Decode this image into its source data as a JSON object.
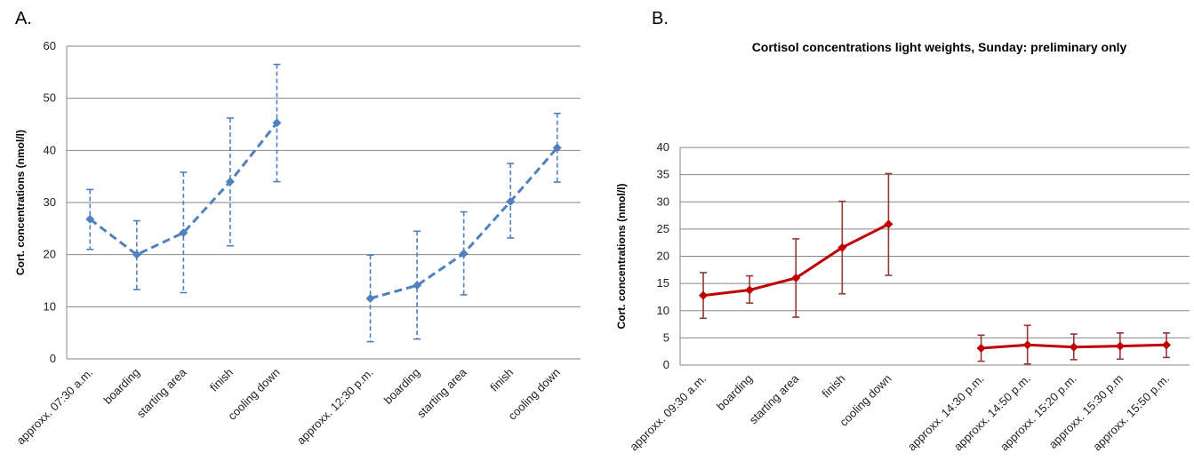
{
  "panels": {
    "a": "A.",
    "b": "B."
  },
  "chart_data": [
    {
      "type": "line",
      "title": "",
      "ylabel": "Cort. concentrations  (nmol/l)",
      "ylim": [
        0,
        60
      ],
      "yticks": [
        0,
        10,
        20,
        30,
        40,
        50,
        60
      ],
      "grid": true,
      "color": "#4f81bd",
      "line_style": "dashed",
      "categories": [
        "approxx. 07:30 a.m.",
        "boarding",
        "starting area",
        "finish",
        "cooling down",
        "",
        "approxx. 12:30 p.m.",
        "boarding",
        "starting area",
        "finish",
        "cooling down"
      ],
      "series": [
        {
          "segments": [
            {
              "start": 0,
              "values": [
                26.8,
                20,
                24.2,
                34,
                45.3
              ],
              "err_low": [
                21,
                13.3,
                12.7,
                21.7,
                34
              ],
              "err_high": [
                32.5,
                26.5,
                35.8,
                46.2,
                56.5
              ]
            },
            {
              "start": 6,
              "values": [
                11.6,
                14.1,
                20.2,
                30.2,
                40.5
              ],
              "err_low": [
                3.3,
                3.8,
                12.3,
                23.2,
                33.9
              ],
              "err_high": [
                19.9,
                24.5,
                28.2,
                37.5,
                47.1
              ]
            }
          ]
        }
      ]
    },
    {
      "type": "line",
      "title": "Cortisol concentrations light weights, Sunday: preliminary only",
      "ylabel": "Cort. concentrations  (nmol/l)",
      "ylim": [
        0,
        40
      ],
      "yticks": [
        0,
        5,
        10,
        15,
        20,
        25,
        30,
        35,
        40
      ],
      "grid": true,
      "color": "#c00000",
      "errcolor": "#953735",
      "line_style": "solid",
      "categories": [
        "approxx. 09:30 a.m.",
        "boarding",
        "starting area",
        "finish",
        "cooling down",
        "",
        "approxx. 14:30 p.m.",
        "approxx. 14:50 p.m.",
        "approxx. 15:20 p.m.",
        "approxx. 15:30 p.m",
        "approxx. 15:50 p.m."
      ],
      "series": [
        {
          "segments": [
            {
              "start": 0,
              "values": [
                12.8,
                13.8,
                16,
                21.6,
                25.9
              ],
              "err_low": [
                8.6,
                11.4,
                8.8,
                13.1,
                16.5
              ],
              "err_high": [
                17,
                16.4,
                23.2,
                30.1,
                35.2
              ]
            },
            {
              "start": 6,
              "values": [
                3.1,
                3.7,
                3.3,
                3.5,
                3.7
              ],
              "err_low": [
                0.7,
                0.2,
                1,
                1.1,
                1.4
              ],
              "err_high": [
                5.5,
                7.3,
                5.7,
                5.9,
                5.9
              ]
            }
          ]
        }
      ]
    }
  ]
}
